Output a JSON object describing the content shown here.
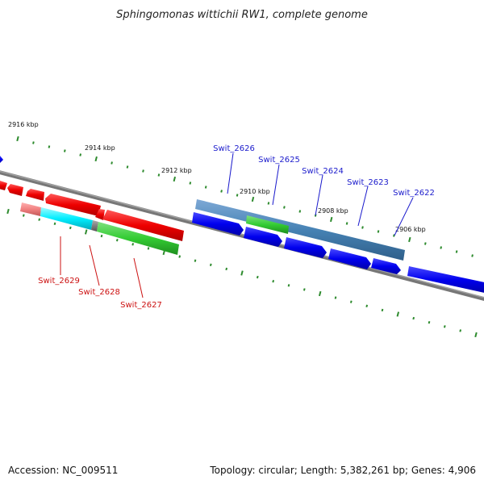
{
  "title": "Sphingomonas wittichii RW1, complete genome",
  "footer": {
    "accession": "Accession: NC_009511",
    "topology": "Topology: circular; Length: 5,382,261 bp; Genes: 4,906"
  },
  "kbp_labels": {
    "k2916": "2916 kbp",
    "k2914": "2914 kbp",
    "k2912": "2912 kbp",
    "k2910": "2910 kbp",
    "k2908": "2908 kbp",
    "k2906": "2906 kbp"
  },
  "gene_labels": {
    "swit_2626": "Swit_2626",
    "swit_2625": "Swit_2625",
    "swit_2624": "Swit_2624",
    "swit_2623": "Swit_2623",
    "swit_2622": "Swit_2622",
    "swit_2629": "Swit_2629",
    "swit_2628": "Swit_2628",
    "swit_2627": "Swit_2627"
  },
  "colors": {
    "forward_strand": "#1010e6",
    "reverse_strand": "#ee1010",
    "cog_bar_blue": "#4682b4",
    "cog_bar_green": "#33cc33",
    "cog_bar_cyan": "#00e5ee",
    "cog_bar_salmon": "#f08080",
    "backbone": "#777777",
    "ticks": "#2e8b2e",
    "blue_label": "#1a1acc",
    "red_label": "#cc1111"
  }
}
